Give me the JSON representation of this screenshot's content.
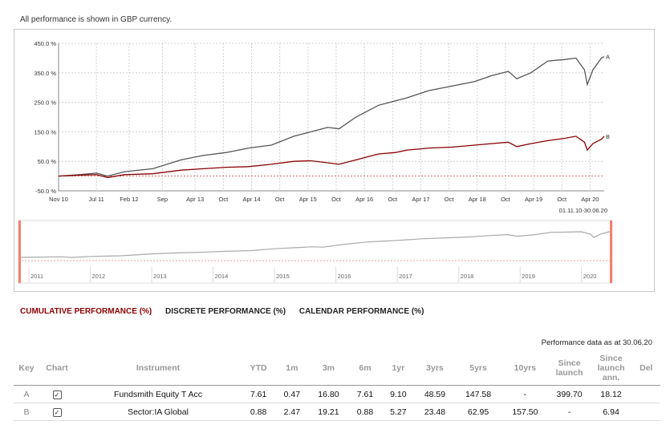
{
  "note": "All performance is shown in GBP currency.",
  "chart_data": {
    "type": "line",
    "y_ticks": [
      "450.0 %",
      "350.0 %",
      "250.0 %",
      "150.0 %",
      "50.0 %",
      "-50.0 %"
    ],
    "y_values": [
      450,
      350,
      250,
      150,
      50,
      -50
    ],
    "ylim": [
      -50,
      450
    ],
    "x_ticks": [
      "Nov 10",
      "Jul 11",
      "Feb 12",
      "Sep",
      "Apr 13",
      "Oct",
      "Apr 14",
      "Oct",
      "Apr 15",
      "Oct",
      "Apr 16",
      "Oct",
      "Apr 17",
      "Oct",
      "Apr 18",
      "Oct",
      "Apr 19",
      "Oct",
      "Apr 20"
    ],
    "x_tick_years": [
      2010.83,
      2011.5,
      2012.08,
      2012.67,
      2013.25,
      2013.75,
      2014.25,
      2014.75,
      2015.25,
      2015.75,
      2016.25,
      2016.75,
      2017.25,
      2017.75,
      2018.25,
      2018.75,
      2019.25,
      2019.75,
      2020.25
    ],
    "xlim": [
      2010.83,
      2020.5
    ],
    "date_range": "01.11.10-30.06.20",
    "series": [
      {
        "name": "A",
        "color": "#555555",
        "x": [
          2010.83,
          2011.2,
          2011.5,
          2011.7,
          2012.0,
          2012.5,
          2013.0,
          2013.4,
          2013.8,
          2014.2,
          2014.6,
          2015.0,
          2015.3,
          2015.6,
          2015.8,
          2016.1,
          2016.5,
          2016.8,
          2017.0,
          2017.4,
          2017.8,
          2018.2,
          2018.5,
          2018.8,
          2018.95,
          2019.2,
          2019.5,
          2019.8,
          2020.0,
          2020.15,
          2020.2,
          2020.3,
          2020.45,
          2020.5
        ],
        "y": [
          0,
          5,
          10,
          0,
          15,
          25,
          55,
          70,
          80,
          95,
          105,
          135,
          150,
          165,
          160,
          200,
          240,
          255,
          265,
          290,
          305,
          320,
          340,
          355,
          330,
          350,
          390,
          395,
          400,
          360,
          310,
          360,
          400,
          405
        ]
      },
      {
        "name": "B",
        "color": "#8b0000",
        "x": [
          2010.83,
          2011.2,
          2011.5,
          2011.7,
          2012.0,
          2012.5,
          2013.0,
          2013.4,
          2013.8,
          2014.2,
          2014.6,
          2015.0,
          2015.3,
          2015.6,
          2015.8,
          2016.1,
          2016.5,
          2016.8,
          2017.0,
          2017.4,
          2017.8,
          2018.2,
          2018.5,
          2018.8,
          2018.95,
          2019.2,
          2019.5,
          2019.8,
          2020.0,
          2020.15,
          2020.2,
          2020.3,
          2020.45,
          2020.5
        ],
        "y": [
          0,
          3,
          5,
          -5,
          5,
          8,
          20,
          25,
          30,
          32,
          40,
          50,
          52,
          45,
          40,
          55,
          75,
          80,
          88,
          95,
          98,
          105,
          110,
          115,
          100,
          110,
          120,
          128,
          135,
          115,
          88,
          110,
          125,
          135
        ]
      }
    ],
    "zero_line": 0,
    "navigator_years": [
      "2011",
      "2012",
      "2013",
      "2014",
      "2015",
      "2016",
      "2017",
      "2018",
      "2019",
      "2020"
    ],
    "navigator_year_values": [
      2011,
      2012,
      2013,
      2014,
      2015,
      2016,
      2017,
      2018,
      2019,
      2020
    ]
  },
  "tabs": [
    "CUMULATIVE PERFORMANCE (%)",
    "DISCRETE PERFORMANCE (%)",
    "CALENDAR PERFORMANCE (%)"
  ],
  "as_of": "Performance data as at 30.06.20",
  "table": {
    "headers": [
      "Key",
      "Chart",
      "Instrument",
      "YTD",
      "1m",
      "3m",
      "6m",
      "1yr",
      "3yrs",
      "5yrs",
      "10yrs",
      "Since launch",
      "Since launch ann.",
      "Del"
    ],
    "rows": [
      {
        "key": "A",
        "chart": "✓",
        "instrument": "Fundsmith Equity T Acc",
        "ytd": "7.61",
        "m1": "0.47",
        "m3": "16.80",
        "m6": "7.61",
        "yr1": "9.10",
        "yrs3": "48.59",
        "yrs5": "147.58",
        "yrs10": "-",
        "since": "399.70",
        "since_ann": "18.12",
        "del": ""
      },
      {
        "key": "B",
        "chart": "✓",
        "instrument": "Sector:IA Global",
        "ytd": "0.88",
        "m1": "2.47",
        "m3": "19.21",
        "m6": "0.88",
        "yr1": "5.27",
        "yrs3": "23.48",
        "yrs5": "62.95",
        "yrs10": "157.50",
        "since": "-",
        "since_ann": "6.94",
        "del": ""
      }
    ]
  }
}
